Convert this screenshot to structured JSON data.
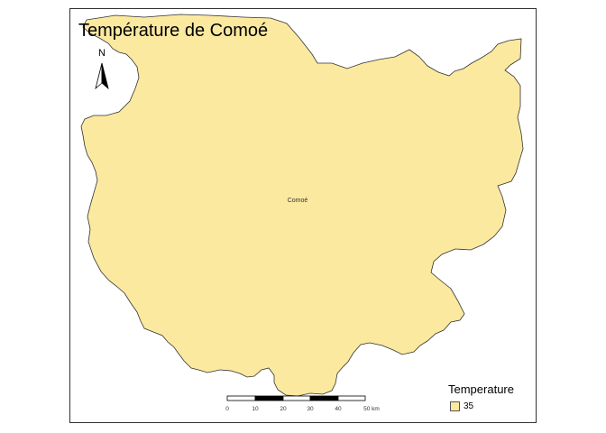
{
  "map": {
    "title": "Température de Comoé",
    "region_label": "Comoé",
    "fill_color": "#fbe9a0",
    "outline_color": "#333333",
    "north_arrow": {
      "icon": "north-arrow-icon",
      "letter": "N"
    },
    "scale_bar": {
      "unit": "km",
      "ticks": [
        "0",
        "10",
        "20",
        "30",
        "40",
        "50 km"
      ]
    },
    "legend": {
      "title": "Temperature",
      "items": [
        {
          "label": "35",
          "color": "#fbe9a0"
        }
      ]
    }
  }
}
